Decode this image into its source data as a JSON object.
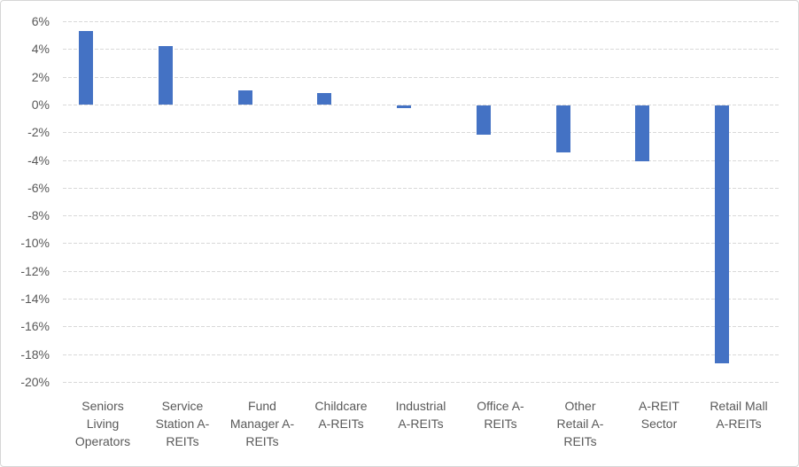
{
  "chart_data": {
    "type": "bar",
    "title": "",
    "xlabel": "",
    "ylabel": "",
    "categories": [
      "Seniors Living Operators",
      "Service Station A-REITs",
      "Fund Manager A-REITs",
      "Childcare A-REITs",
      "Industrial A-REITs",
      "Office A-REITs",
      "Other Retail A-REITs",
      "A-REIT Sector",
      "Retail Mall A-REITs"
    ],
    "category_label_lines": [
      "Seniors\nLiving\nOperators",
      "Service\nStation A-\nREITs",
      "Fund\nManager A-\nREITs",
      "Childcare\nA-REITs",
      "Industrial\nA-REITs",
      "Office A-\nREITs",
      "Other\nRetail A-\nREITs",
      "A-REIT\nSector",
      "Retail Mall\nA-REITs"
    ],
    "values": [
      5.3,
      4.2,
      1.0,
      0.8,
      -0.2,
      -2.1,
      -3.4,
      -4.0,
      -18.6
    ],
    "ylim": [
      -20,
      6
    ],
    "ytick_step": 2,
    "ytick_labels": [
      "6%",
      "4%",
      "2%",
      "0%",
      "-2%",
      "-4%",
      "-6%",
      "-8%",
      "-10%",
      "-12%",
      "-14%",
      "-16%",
      "-18%",
      "-20%"
    ],
    "grid": true,
    "legend": false,
    "bar_color": "#4472C4",
    "gridline_color": "#D9D9D9",
    "text_color": "#595959",
    "background_color": "#FFFFFF",
    "border_color": "#D6D6D6"
  }
}
